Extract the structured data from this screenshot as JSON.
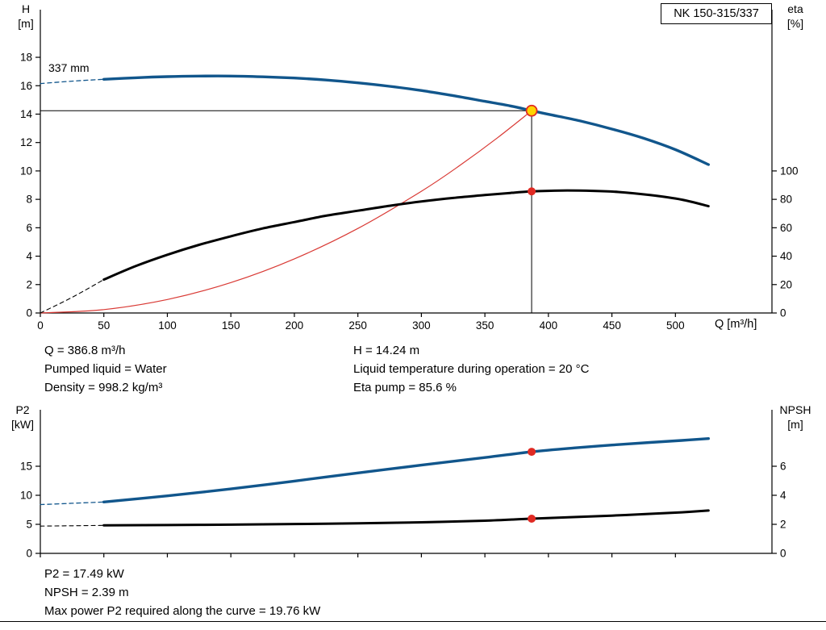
{
  "pump_model": "NK 150-315/337",
  "colors": {
    "curve_blue": "#11568c",
    "curve_black": "#000000",
    "system_red": "#d93a35",
    "marker_red": "#e02a23",
    "marker_yellow": "#ffd400"
  },
  "info_top": {
    "col1": [
      "Q = 386.8 m³/h",
      "Pumped liquid = Water",
      "Density = 998.2 kg/m³"
    ],
    "col2": [
      "H = 14.24 m",
      "Liquid temperature during operation = 20 °C",
      "Eta pump = 85.6 %"
    ]
  },
  "info_bottom": [
    "P2 = 17.49 kW",
    "NPSH = 2.39 m",
    "Max power P2 required along the curve = 19.76 kW"
  ],
  "chart_data": [
    {
      "type": "line",
      "title": "QH and efficiency curves",
      "axes": {
        "x": {
          "label": "Q [m³/h]",
          "min": 0,
          "max": 576,
          "ticks": [
            0,
            50,
            100,
            150,
            200,
            250,
            300,
            350,
            400,
            450,
            500
          ]
        },
        "left": {
          "symbol": "H",
          "unit": "[m]",
          "min": 0,
          "max": 21.2,
          "ticks": [
            0,
            2,
            4,
            6,
            8,
            10,
            12,
            14,
            16,
            18
          ]
        },
        "right": {
          "symbol": "eta",
          "unit": "[%]",
          "ticks": [
            0,
            20,
            40,
            60,
            80,
            100
          ],
          "left_units_per_unit": 0.1
        }
      },
      "annotations": [
        {
          "text": "337 mm"
        }
      ],
      "duty_point": {
        "q": 386.8,
        "h": 14.24,
        "eta": 85.6
      },
      "series": [
        {
          "name": "system-curve",
          "axis": "left",
          "color": "system_red",
          "width": 1.2,
          "dash": false,
          "points": [
            [
              0,
              0
            ],
            [
              50,
              0.24
            ],
            [
              100,
              0.95
            ],
            [
              150,
              2.14
            ],
            [
              200,
              3.81
            ],
            [
              250,
              5.95
            ],
            [
              300,
              8.57
            ],
            [
              330,
              10.37
            ],
            [
              360,
              12.34
            ],
            [
              386.8,
              14.24
            ]
          ]
        },
        {
          "name": "head-curve-extrapolated",
          "axis": "left",
          "color": "curve_blue",
          "width": 1.3,
          "dash": true,
          "points": [
            [
              0,
              16.15
            ],
            [
              25,
              16.32
            ],
            [
              50,
              16.45
            ]
          ]
        },
        {
          "name": "head-curve-337mm",
          "axis": "left",
          "color": "curve_blue",
          "width": 3.4,
          "dash": false,
          "points": [
            [
              50,
              16.45
            ],
            [
              75,
              16.56
            ],
            [
              100,
              16.64
            ],
            [
              125,
              16.68
            ],
            [
              150,
              16.68
            ],
            [
              175,
              16.63
            ],
            [
              200,
              16.54
            ],
            [
              225,
              16.4
            ],
            [
              250,
              16.2
            ],
            [
              275,
              15.96
            ],
            [
              300,
              15.66
            ],
            [
              325,
              15.3
            ],
            [
              350,
              14.9
            ],
            [
              370,
              14.58
            ],
            [
              386.8,
              14.24
            ],
            [
              400,
              13.99
            ],
            [
              425,
              13.52
            ],
            [
              450,
              12.95
            ],
            [
              475,
              12.3
            ],
            [
              500,
              11.5
            ],
            [
              526,
              10.45
            ]
          ]
        },
        {
          "name": "efficiency-curve-extrapolated",
          "axis": "right",
          "color": "curve_black",
          "width": 1.1,
          "dash": true,
          "points": [
            [
              0,
              0
            ],
            [
              25,
              11
            ],
            [
              50,
              23.5
            ]
          ]
        },
        {
          "name": "efficiency-curve",
          "axis": "right",
          "color": "curve_black",
          "width": 3.0,
          "dash": false,
          "points": [
            [
              50,
              23.5
            ],
            [
              75,
              33
            ],
            [
              100,
              41
            ],
            [
              125,
              48
            ],
            [
              150,
              54
            ],
            [
              175,
              59.5
            ],
            [
              200,
              64
            ],
            [
              225,
              68.5
            ],
            [
              250,
              72
            ],
            [
              275,
              75.5
            ],
            [
              300,
              78.5
            ],
            [
              325,
              81
            ],
            [
              350,
              83
            ],
            [
              370,
              84.5
            ],
            [
              386.8,
              85.6
            ],
            [
              410,
              86.2
            ],
            [
              435,
              86
            ],
            [
              455,
              85.2
            ],
            [
              480,
              83
            ],
            [
              505,
              79.8
            ],
            [
              526,
              75.2
            ]
          ]
        }
      ],
      "ref_lines": [
        {
          "dir": "h",
          "at": 14.24,
          "from": 0,
          "to": 386.8
        },
        {
          "dir": "v",
          "at": 386.8,
          "from": 0,
          "to": 14.24
        }
      ],
      "markers": [
        {
          "name": "duty-point-head",
          "axis": "left",
          "x": 386.8,
          "y": 14.24,
          "style": "yellow"
        },
        {
          "name": "duty-point-efficiency",
          "axis": "right",
          "x": 386.8,
          "y": 85.6,
          "style": "red"
        }
      ]
    },
    {
      "type": "line",
      "title": "P2 and NPSH curves",
      "axes": {
        "x": {
          "label": "",
          "min": 0,
          "max": 576,
          "ticks": [
            0,
            50,
            100,
            150,
            200,
            250,
            300,
            350,
            400,
            450,
            500
          ]
        },
        "left": {
          "symbol": "P2",
          "unit": "[kW]",
          "min": 0,
          "max": 24.7,
          "ticks": [
            0,
            5,
            10,
            15
          ]
        },
        "right": {
          "symbol": "NPSH",
          "unit": "[m]",
          "ticks": [
            0,
            2,
            4,
            6
          ],
          "left_units_per_unit": 2.5
        }
      },
      "duty_point": {
        "q": 386.8,
        "p2": 17.49,
        "npsh": 2.39,
        "max_p2_along_curve": 19.76
      },
      "series": [
        {
          "name": "p2-curve-extrapolated",
          "axis": "left",
          "color": "curve_blue",
          "width": 1.3,
          "dash": true,
          "points": [
            [
              0,
              8.4
            ],
            [
              25,
              8.62
            ],
            [
              50,
              8.85
            ]
          ]
        },
        {
          "name": "p2-curve",
          "axis": "left",
          "color": "curve_blue",
          "width": 3.4,
          "dash": false,
          "points": [
            [
              50,
              8.85
            ],
            [
              100,
              9.9
            ],
            [
              150,
              11.1
            ],
            [
              200,
              12.45
            ],
            [
              250,
              13.85
            ],
            [
              300,
              15.2
            ],
            [
              350,
              16.5
            ],
            [
              386.8,
              17.49
            ],
            [
              420,
              18.15
            ],
            [
              450,
              18.65
            ],
            [
              480,
              19.1
            ],
            [
              505,
              19.45
            ],
            [
              526,
              19.76
            ]
          ]
        },
        {
          "name": "npsh-curve-extrapolated",
          "axis": "right",
          "color": "curve_black",
          "width": 1.1,
          "dash": true,
          "points": [
            [
              0,
              1.88
            ],
            [
              25,
              1.9
            ],
            [
              50,
              1.93
            ]
          ]
        },
        {
          "name": "npsh-curve",
          "axis": "right",
          "color": "curve_black",
          "width": 3.0,
          "dash": false,
          "points": [
            [
              50,
              1.93
            ],
            [
              100,
              1.95
            ],
            [
              150,
              1.98
            ],
            [
              200,
              2.02
            ],
            [
              250,
              2.07
            ],
            [
              300,
              2.14
            ],
            [
              350,
              2.25
            ],
            [
              386.8,
              2.39
            ],
            [
              420,
              2.5
            ],
            [
              450,
              2.6
            ],
            [
              480,
              2.72
            ],
            [
              505,
              2.83
            ],
            [
              526,
              2.95
            ]
          ]
        }
      ],
      "ref_lines": [],
      "markers": [
        {
          "name": "duty-point-p2",
          "axis": "left",
          "x": 386.8,
          "y": 17.49,
          "style": "red"
        },
        {
          "name": "duty-point-npsh",
          "axis": "right",
          "x": 386.8,
          "y": 2.39,
          "style": "red"
        }
      ]
    }
  ]
}
